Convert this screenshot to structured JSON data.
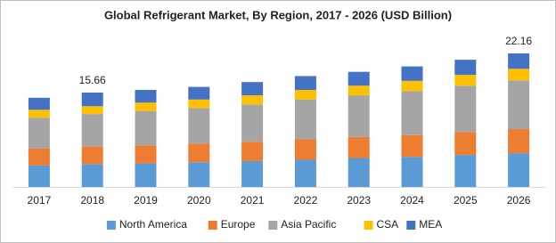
{
  "chart_data": {
    "type": "stacked_bar",
    "title": "Global Refrigerant Market, By Region, 2017 - 2026 (USD Billion)",
    "categories": [
      "2017",
      "2018",
      "2019",
      "2020",
      "2021",
      "2022",
      "2023",
      "2024",
      "2025",
      "2026"
    ],
    "series": [
      {
        "name": "North America",
        "color": "#5b9bd5",
        "values": [
          3.6,
          3.8,
          3.9,
          4.1,
          4.3,
          4.5,
          4.8,
          5.0,
          5.3,
          5.6
        ]
      },
      {
        "name": "Europe",
        "color": "#ed7d31",
        "values": [
          2.8,
          2.9,
          3.0,
          3.1,
          3.2,
          3.4,
          3.5,
          3.6,
          3.8,
          4.0
        ]
      },
      {
        "name": "Asia Pacific",
        "color": "#a5a5a5",
        "values": [
          5.1,
          5.4,
          5.7,
          5.9,
          6.2,
          6.6,
          6.9,
          7.3,
          7.7,
          8.1
        ]
      },
      {
        "name": "CSA",
        "color": "#ffc000",
        "values": [
          1.3,
          1.3,
          1.4,
          1.4,
          1.5,
          1.6,
          1.6,
          1.7,
          1.8,
          1.9
        ]
      },
      {
        "name": "MEA",
        "color": "#4472c4",
        "values": [
          2.0,
          2.26,
          2.1,
          2.1,
          2.2,
          2.3,
          2.3,
          2.4,
          2.5,
          2.56
        ]
      }
    ],
    "total_labels": [
      {
        "category": "2018",
        "value": 15.66
      },
      {
        "category": "2026",
        "value": 22.16
      }
    ],
    "legend": "bottom"
  }
}
